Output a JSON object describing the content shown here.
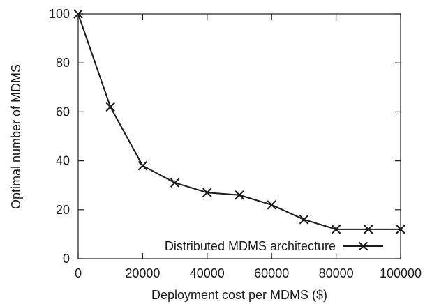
{
  "chart_data": {
    "type": "line",
    "xlabel": "Deployment cost per MDMS ($)",
    "ylabel": "Optimal number of MDMS",
    "xlim": [
      0,
      100000
    ],
    "ylim": [
      0,
      100
    ],
    "x_ticks": [
      0,
      20000,
      40000,
      60000,
      80000,
      100000
    ],
    "y_ticks": [
      0,
      20,
      40,
      60,
      80,
      100
    ],
    "x_tick_labels": [
      "0",
      "20000",
      "40000",
      "60000",
      "80000",
      "100000"
    ],
    "y_tick_labels": [
      "0",
      "20",
      "40",
      "60",
      "80",
      "100"
    ],
    "grid": false,
    "legend_position": "bottom-right",
    "series": [
      {
        "name": "Distributed MDMS architecture",
        "marker": "x",
        "color": "#1a1a1a",
        "x": [
          0,
          10000,
          20000,
          30000,
          40000,
          50000,
          60000,
          70000,
          80000,
          90000,
          100000
        ],
        "y": [
          100,
          62,
          38,
          31,
          27,
          26,
          22,
          16,
          12,
          12,
          12
        ]
      }
    ]
  }
}
